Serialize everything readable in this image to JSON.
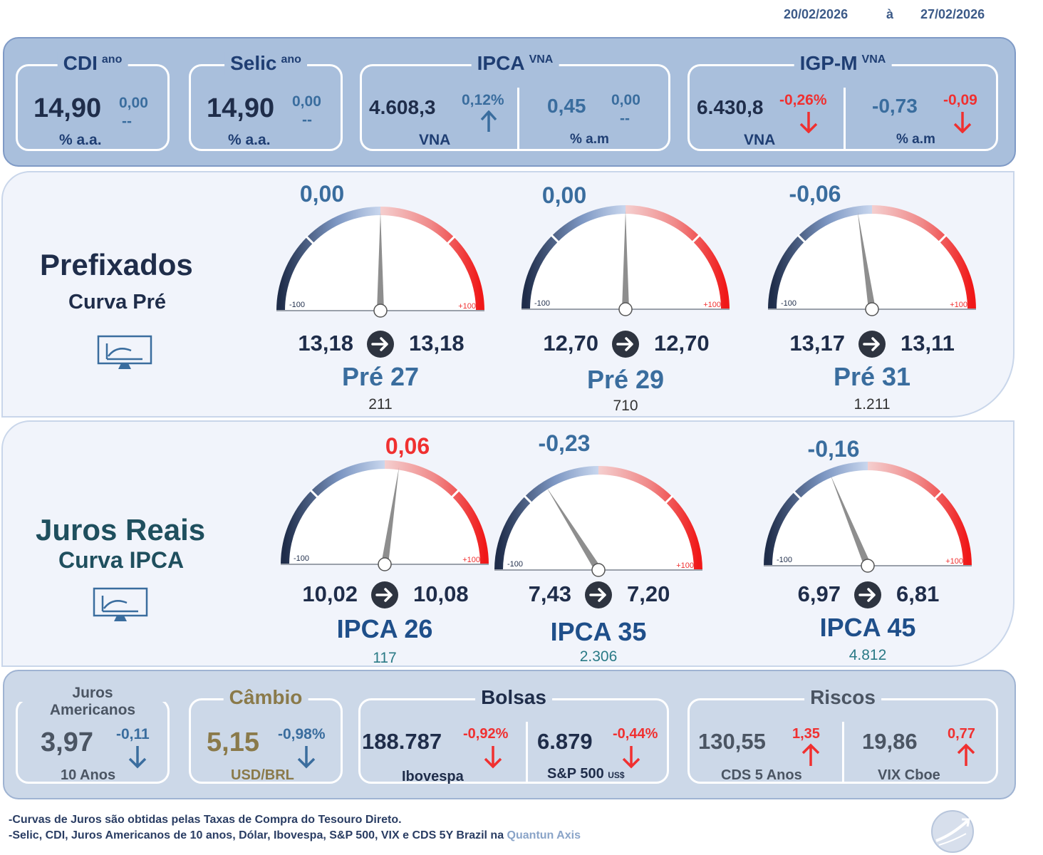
{
  "header": {
    "date_from": "20/02/2026",
    "separator": "à",
    "date_to": "27/02/2026"
  },
  "top": {
    "cdi": {
      "title": "CDI",
      "sup": "ano",
      "value": "14,90",
      "change": "0,00",
      "trend": "--",
      "unit": "% a.a."
    },
    "selic": {
      "title": "Selic",
      "sup": "ano",
      "value": "14,90",
      "change": "0,00",
      "trend": "--",
      "unit": "% a.a."
    },
    "ipca": {
      "title": "IPCA",
      "sup": "VNA",
      "vna_value": "4.608,3",
      "vna_change": "0,12%",
      "vna_label": "VNA",
      "am_value": "0,45",
      "am_change": "0,00",
      "am_trend": "--",
      "am_label": "% a.m"
    },
    "igpm": {
      "title": "IGP-M",
      "sup": "VNA",
      "vna_value": "6.430,8",
      "vna_change": "-0,26%",
      "vna_label": "VNA",
      "am_value": "-0,73",
      "am_change": "-0,09",
      "am_label": "% a.m"
    }
  },
  "prefixados": {
    "title": "Prefixados",
    "subtitle": "Curva Pré",
    "icon": "curve-monitor-icon",
    "gauges": [
      {
        "change": "0,00",
        "change_value": 0.0,
        "from": "13,18",
        "to": "13,18",
        "name": "Pré 27",
        "volume": "211",
        "min": "-100",
        "max": "+100"
      },
      {
        "change": "0,00",
        "change_value": 0.0,
        "from": "12,70",
        "to": "12,70",
        "name": "Pré 29",
        "volume": "710",
        "min": "-100",
        "max": "+100"
      },
      {
        "change": "-0,06",
        "change_value": -0.06,
        "from": "13,17",
        "to": "13,11",
        "name": "Pré 31",
        "volume": "1.211",
        "min": "-100",
        "max": "+100"
      }
    ]
  },
  "juros_reais": {
    "title": "Juros Reais",
    "subtitle": "Curva IPCA",
    "icon": "curve-monitor-icon",
    "gauges": [
      {
        "change": "0,06",
        "change_value": 0.06,
        "from": "10,02",
        "to": "10,08",
        "name": "IPCA 26",
        "volume": "117",
        "min": "-100",
        "max": "+100"
      },
      {
        "change": "-0,23",
        "change_value": -0.23,
        "from": "7,43",
        "to": "7,20",
        "name": "IPCA 35",
        "volume": "2.306",
        "min": "-100",
        "max": "+100"
      },
      {
        "change": "-0,16",
        "change_value": -0.16,
        "from": "6,97",
        "to": "6,81",
        "name": "IPCA 45",
        "volume": "4.812",
        "min": "-100",
        "max": "+100"
      }
    ]
  },
  "bottom": {
    "juros_americanos": {
      "title_line1": "Juros",
      "title_line2": "Americanos",
      "value": "3,97",
      "change": "-0,11",
      "label": "10 Anos"
    },
    "cambio": {
      "title": "Câmbio",
      "value": "5,15",
      "change": "-0,98%",
      "label": "USD/BRL"
    },
    "bolsas": {
      "title": "Bolsas",
      "ibov_value": "188.787",
      "ibov_change": "-0,92%",
      "ibov_label": "Ibovespa",
      "sp_value": "6.879",
      "sp_change": "-0,44%",
      "sp_label": "S&P 500",
      "sp_unit": "US$"
    },
    "riscos": {
      "title": "Riscos",
      "cds_value": "130,55",
      "cds_change": "1,35",
      "cds_label": "CDS 5 Anos",
      "vix_value": "19,86",
      "vix_change": "0,77",
      "vix_label": "VIX Cboe"
    }
  },
  "footer": {
    "line1": "-Curvas de Juros são obtidas pelas Taxas de Compra do Tesouro Direto.",
    "line2": "-Selic, CDI, Juros Americanos de 10 anos, Dólar, Ibovespa,  S&P 500, VIX e CDS 5Y Brazil na ",
    "source": "Quantun Axis"
  },
  "colors": {
    "navy": "#1f2d4a",
    "blue": "#3a6d9e",
    "red": "#f03030",
    "gold": "#8a7a4a",
    "teal": "#1f4f5e",
    "slate": "#4b5563"
  }
}
